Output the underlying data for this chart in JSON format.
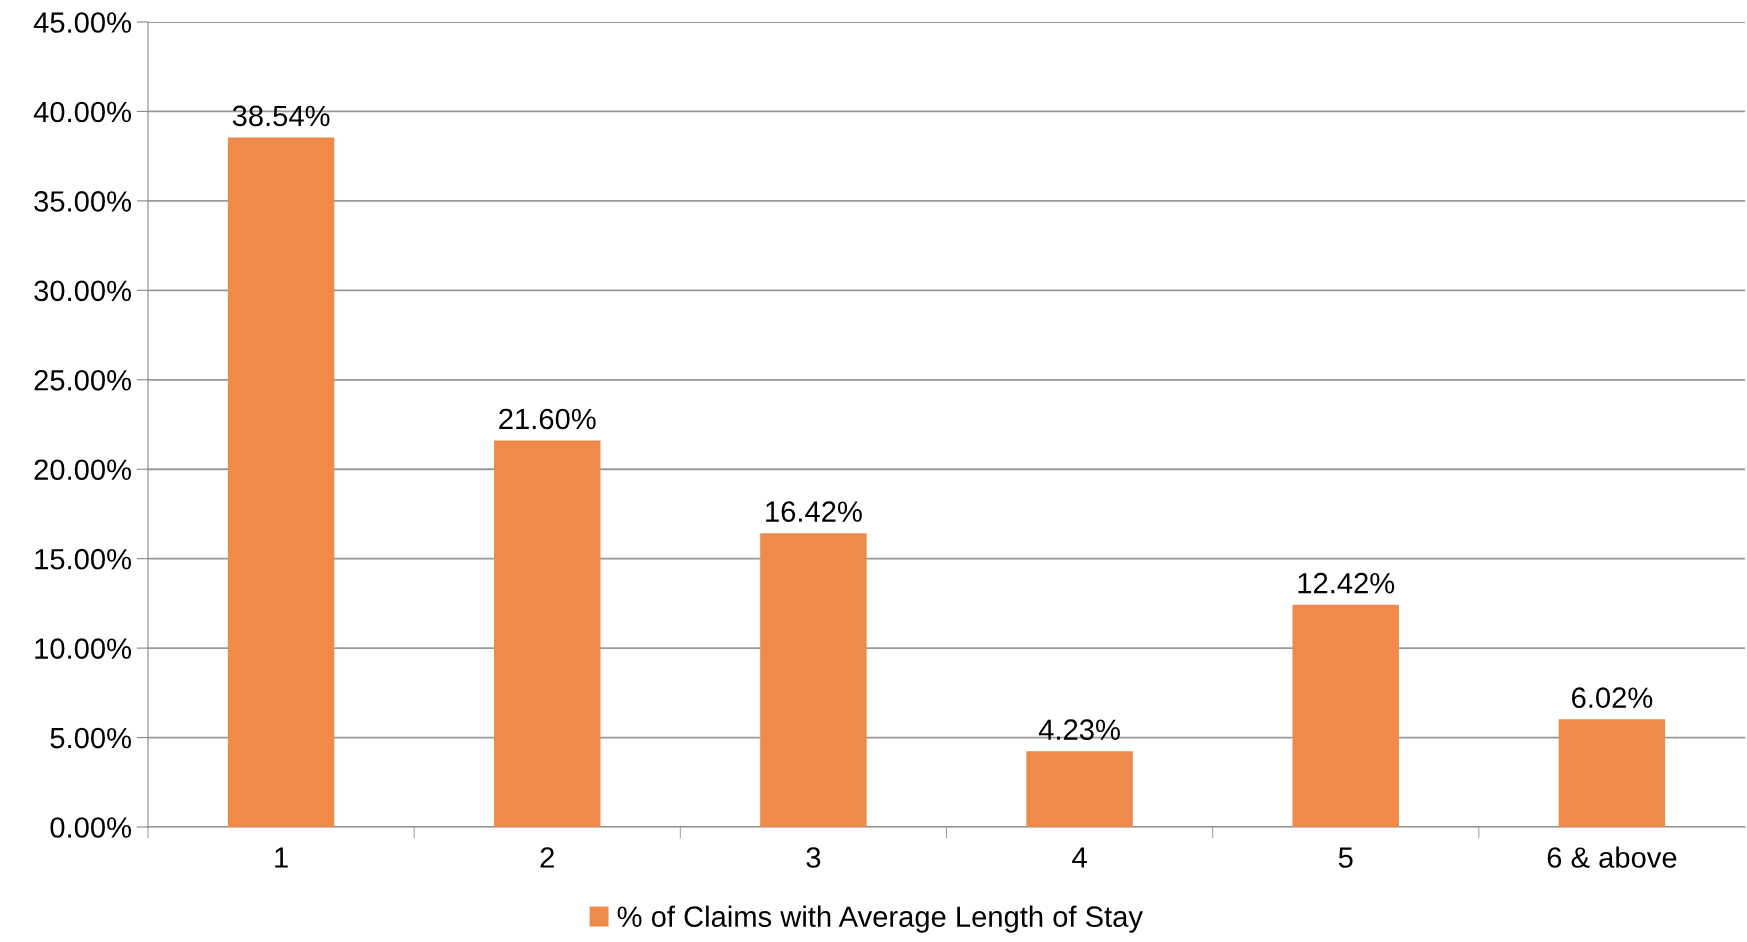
{
  "chart_data": {
    "type": "bar",
    "categories": [
      "1",
      "2",
      "3",
      "4",
      "5",
      "6 & above"
    ],
    "series": [
      {
        "name": "% of Claims with Average Length of Stay",
        "color": "#f08a4b",
        "values": [
          38.54,
          21.6,
          16.42,
          4.23,
          12.42,
          6.02
        ]
      }
    ],
    "value_labels": [
      "38.54%",
      "21.60%",
      "16.42%",
      "4.23%",
      "12.42%",
      "6.02%"
    ],
    "ylim": [
      0,
      45
    ],
    "yticks": [
      {
        "value": 0,
        "label": "0.00%"
      },
      {
        "value": 5,
        "label": "5.00%"
      },
      {
        "value": 10,
        "label": "10.00%"
      },
      {
        "value": 15,
        "label": "15.00%"
      },
      {
        "value": 20,
        "label": "20.00%"
      },
      {
        "value": 25,
        "label": "25.00%"
      },
      {
        "value": 30,
        "label": "30.00%"
      },
      {
        "value": 35,
        "label": "35.00%"
      },
      {
        "value": 40,
        "label": "40.00%"
      },
      {
        "value": 45,
        "label": "45.00%"
      }
    ],
    "grid": "y",
    "legend": "bottom"
  }
}
